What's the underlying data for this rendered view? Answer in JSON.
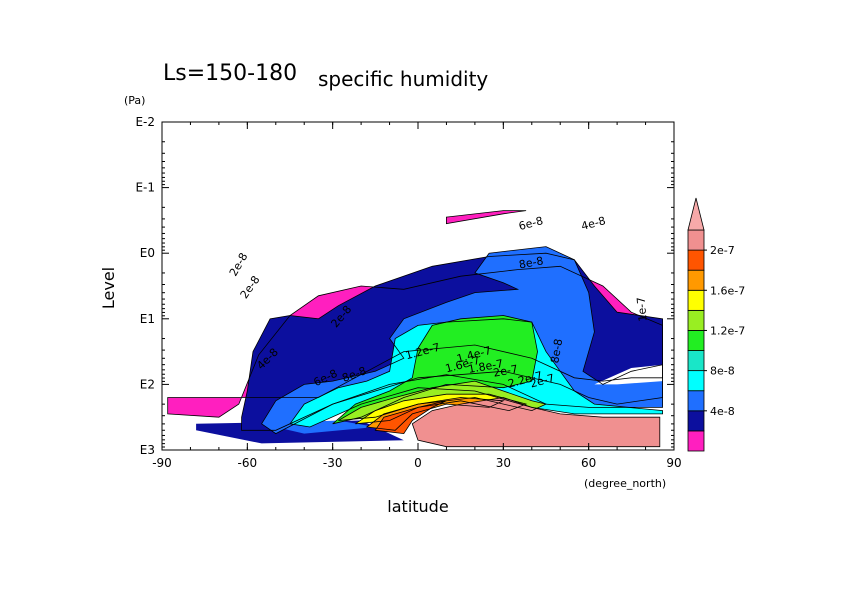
{
  "chart_data": {
    "type": "heatmap",
    "title": "Ls=150-180",
    "subtitle": "specific humidity",
    "xlabel": "latitude",
    "xunits": "(degree_north)",
    "ylabel": "Level",
    "yunits": "(Pa)",
    "xlim": [
      -90,
      90
    ],
    "ylim_log10_pa": [
      -2,
      3
    ],
    "y_scale": "log",
    "x_ticks": [
      "-90",
      "-60",
      "-30",
      "0",
      "30",
      "60",
      "90"
    ],
    "y_ticks": [
      "E-2",
      "E-1",
      "E0",
      "E1",
      "E2",
      "E3"
    ],
    "colorbar": {
      "labels": [
        "2e-7",
        "1.6e-7",
        "1.2e-7",
        "8e-8",
        "4e-8"
      ],
      "levels": [
        2e-08,
        4e-08,
        6e-08,
        8e-08,
        1e-07,
        1.2e-07,
        1.4e-07,
        1.6e-07,
        1.8e-07,
        2e-07,
        2.2e-07
      ],
      "colors": [
        "#ff1fbf",
        "#0c0f9e",
        "#1f6fff",
        "#00ffff",
        "#19e6c8",
        "#22ee22",
        "#99ee22",
        "#ffff00",
        "#ff9900",
        "#ff5500",
        "#f09090"
      ],
      "position": "right"
    },
    "contour_labels": [
      "2e-8",
      "2e-8",
      "2e-8",
      "4e-8",
      "4e-8",
      "6e-8",
      "6e-8",
      "8e-8",
      "8e-8",
      "8e-8",
      "1e-7",
      "1.2e-7",
      "1.4e-7",
      "1.6e-7",
      "1.8e-7",
      "2e-7",
      "2e-7",
      "2.2e-7"
    ],
    "regions": [
      {
        "level": "2e-8",
        "color": "#ff1fbf",
        "poly": [
          [
            -88,
            2.2
          ],
          [
            -88,
            2.45
          ],
          [
            -70,
            2.5
          ],
          [
            -63,
            2.3
          ],
          [
            -56,
            1.55
          ],
          [
            -45,
            0.95
          ],
          [
            -35,
            0.65
          ],
          [
            -20,
            0.5
          ],
          [
            -5,
            0.55
          ],
          [
            15,
            0.35
          ],
          [
            35,
            0.25
          ],
          [
            50,
            0.2
          ],
          [
            65,
            0.5
          ],
          [
            75,
            0.9
          ],
          [
            86,
            1.1
          ],
          [
            86,
            1.9
          ],
          [
            75,
            1.9
          ],
          [
            65,
            1.95
          ],
          [
            55,
            1.9
          ],
          [
            40,
            1.6
          ],
          [
            20,
            1.4
          ],
          [
            -5,
            1.5
          ],
          [
            -35,
            2.2
          ],
          [
            -60,
            2.2
          ]
        ]
      },
      {
        "level": "2e-8",
        "color": "#ff1fbf",
        "poly": [
          [
            10,
            -0.55
          ],
          [
            30,
            -0.65
          ],
          [
            38,
            -0.65
          ],
          [
            30,
            -0.6
          ],
          [
            10,
            -0.45
          ]
        ]
      },
      {
        "level": "4e-8",
        "color": "#0c0f9e",
        "poly": [
          [
            -62,
            2.5
          ],
          [
            -60,
            2.1
          ],
          [
            -58,
            1.5
          ],
          [
            -52,
            1.0
          ],
          [
            -45,
            0.95
          ],
          [
            -35,
            1.0
          ],
          [
            -28,
            0.8
          ],
          [
            -15,
            0.5
          ],
          [
            5,
            0.2
          ],
          [
            25,
            0.05
          ],
          [
            45,
            0.0
          ],
          [
            55,
            0.1
          ],
          [
            62,
            0.5
          ],
          [
            70,
            0.9
          ],
          [
            86,
            1.0
          ],
          [
            86,
            2.2
          ],
          [
            70,
            2.3
          ],
          [
            60,
            2.2
          ],
          [
            50,
            2.0
          ],
          [
            30,
            1.8
          ],
          [
            0,
            1.9
          ],
          [
            -30,
            2.3
          ],
          [
            -50,
            2.7
          ],
          [
            -62,
            2.7
          ]
        ]
      },
      {
        "level": "6e-8",
        "color": "#1f6fff",
        "poly": [
          [
            -55,
            2.6
          ],
          [
            -50,
            2.25
          ],
          [
            -40,
            2.0
          ],
          [
            -30,
            1.95
          ],
          [
            -15,
            1.8
          ],
          [
            -5,
            1.6
          ],
          [
            -10,
            1.3
          ],
          [
            -5,
            1.0
          ],
          [
            10,
            0.75
          ],
          [
            20,
            0.6
          ],
          [
            35,
            0.55
          ],
          [
            30,
            0.45
          ],
          [
            20,
            0.3
          ],
          [
            25,
            0.0
          ],
          [
            45,
            -0.1
          ],
          [
            55,
            0.1
          ],
          [
            60,
            0.6
          ],
          [
            62,
            1.2
          ],
          [
            58,
            1.8
          ],
          [
            65,
            2.0
          ],
          [
            75,
            1.8
          ],
          [
            86,
            1.7
          ],
          [
            86,
            2.35
          ],
          [
            60,
            2.35
          ],
          [
            45,
            2.3
          ],
          [
            30,
            2.0
          ],
          [
            10,
            1.85
          ],
          [
            -10,
            2.0
          ],
          [
            -30,
            2.3
          ],
          [
            -50,
            2.75
          ]
        ]
      },
      {
        "level": "8e-8",
        "color": "#00ffff",
        "poly": [
          [
            -45,
            2.6
          ],
          [
            -40,
            2.3
          ],
          [
            -28,
            2.05
          ],
          [
            -18,
            1.95
          ],
          [
            -10,
            1.8
          ],
          [
            -8,
            1.3
          ],
          [
            0,
            1.1
          ],
          [
            10,
            1.05
          ],
          [
            30,
            1.0
          ],
          [
            40,
            1.05
          ],
          [
            45,
            1.5
          ],
          [
            50,
            1.8
          ],
          [
            55,
            2.1
          ],
          [
            62,
            2.3
          ],
          [
            86,
            2.4
          ],
          [
            86,
            2.45
          ],
          [
            55,
            2.45
          ],
          [
            40,
            2.35
          ],
          [
            20,
            2.1
          ],
          [
            0,
            2.05
          ],
          [
            -20,
            2.3
          ],
          [
            -38,
            2.65
          ]
        ]
      },
      {
        "level": "1e-7",
        "color": "#22ee22",
        "poly": [
          [
            -30,
            2.6
          ],
          [
            -22,
            2.3
          ],
          [
            -10,
            2.1
          ],
          [
            -2,
            1.9
          ],
          [
            0,
            1.45
          ],
          [
            5,
            1.1
          ],
          [
            15,
            1.0
          ],
          [
            30,
            0.95
          ],
          [
            40,
            1.05
          ],
          [
            42,
            1.5
          ],
          [
            40,
            1.95
          ],
          [
            30,
            2.05
          ],
          [
            10,
            2.0
          ],
          [
            -5,
            2.2
          ],
          [
            -20,
            2.5
          ]
        ]
      },
      {
        "level": "1.2e-7",
        "color": "#99ee22",
        "poly": [
          [
            -28,
            2.55
          ],
          [
            -20,
            2.35
          ],
          [
            -8,
            2.2
          ],
          [
            5,
            2.05
          ],
          [
            20,
            1.95
          ],
          [
            30,
            2.1
          ],
          [
            40,
            2.25
          ],
          [
            45,
            2.3
          ],
          [
            40,
            2.4
          ],
          [
            20,
            2.2
          ],
          [
            0,
            2.3
          ],
          [
            -15,
            2.5
          ]
        ]
      },
      {
        "level": "1.4e-7",
        "color": "#ffff00",
        "poly": [
          [
            -22,
            2.6
          ],
          [
            -15,
            2.4
          ],
          [
            -5,
            2.25
          ],
          [
            10,
            2.15
          ],
          [
            25,
            2.15
          ],
          [
            38,
            2.3
          ],
          [
            32,
            2.4
          ],
          [
            15,
            2.25
          ],
          [
            0,
            2.35
          ],
          [
            -10,
            2.55
          ]
        ]
      },
      {
        "level": "1.8e-7",
        "color": "#ff9900",
        "poly": [
          [
            -18,
            2.65
          ],
          [
            -12,
            2.45
          ],
          [
            0,
            2.3
          ],
          [
            15,
            2.2
          ],
          [
            30,
            2.25
          ],
          [
            25,
            2.35
          ],
          [
            10,
            2.3
          ],
          [
            -2,
            2.45
          ],
          [
            -8,
            2.7
          ]
        ]
      },
      {
        "level": "2e-7",
        "color": "#ff5500",
        "poly": [
          [
            -15,
            2.7
          ],
          [
            -12,
            2.5
          ],
          [
            0,
            2.35
          ],
          [
            10,
            2.25
          ],
          [
            5,
            2.35
          ],
          [
            -2,
            2.55
          ],
          [
            -5,
            2.75
          ]
        ]
      },
      {
        "level": "2.2e-7",
        "color": "#f09090",
        "poly": [
          [
            0,
            2.85
          ],
          [
            -2,
            2.6
          ],
          [
            5,
            2.4
          ],
          [
            15,
            2.3
          ],
          [
            30,
            2.2
          ],
          [
            40,
            2.35
          ],
          [
            50,
            2.45
          ],
          [
            65,
            2.5
          ],
          [
            85,
            2.5
          ],
          [
            85,
            2.95
          ],
          [
            10,
            2.95
          ]
        ]
      },
      {
        "level": "0",
        "color": "#ffffff",
        "poly": [
          [
            62,
            2.0
          ],
          [
            75,
            1.75
          ],
          [
            86,
            1.7
          ],
          [
            86,
            1.95
          ],
          [
            70,
            2.0
          ]
        ]
      }
    ],
    "band_regions": [
      {
        "color": "#0c0f9e",
        "poly": [
          [
            -78,
            2.6
          ],
          [
            -20,
            2.55
          ],
          [
            -5,
            2.85
          ],
          [
            -55,
            2.9
          ],
          [
            -78,
            2.7
          ]
        ]
      },
      {
        "color": "#1f6fff",
        "poly": [
          [
            -55,
            2.6
          ],
          [
            -28,
            2.55
          ],
          [
            -15,
            2.65
          ],
          [
            -40,
            2.75
          ]
        ]
      }
    ]
  }
}
